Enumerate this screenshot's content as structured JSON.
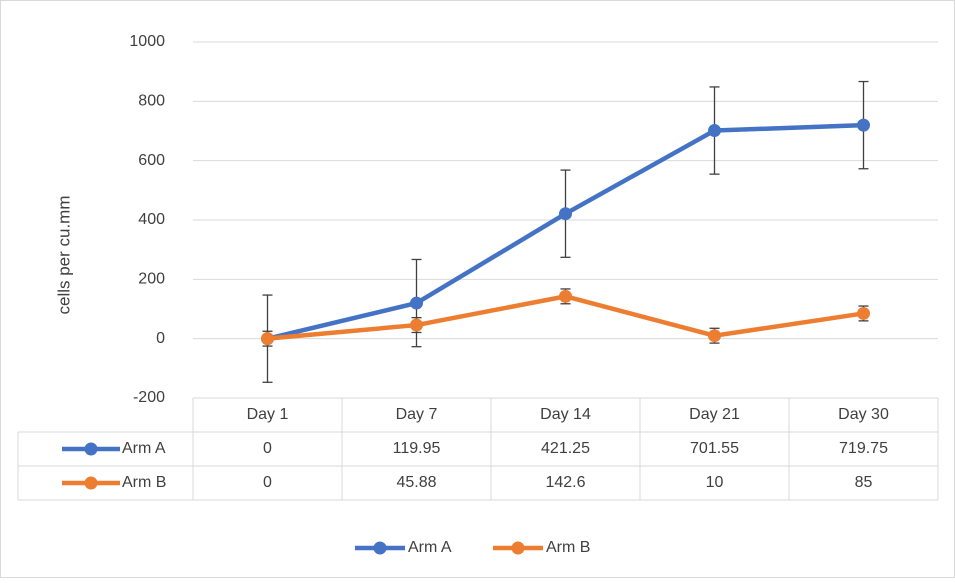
{
  "chart_data": {
    "type": "line",
    "y_label": "cells per cu.mm",
    "categories": [
      "Day 1",
      "Day 7",
      "Day 14",
      "Day 21",
      "Day 30"
    ],
    "series": [
      {
        "name": "Arm A",
        "color": "#4472c4",
        "values": [
          0,
          119.95,
          421.25,
          701.55,
          719.75
        ],
        "errors": [
          147,
          147,
          147,
          147,
          147
        ]
      },
      {
        "name": "Arm B",
        "color": "#ed7d31",
        "values": [
          0,
          45.88,
          142.6,
          10,
          85
        ],
        "errors": [
          25,
          25,
          25,
          25,
          25
        ]
      }
    ],
    "ylim": [
      -200,
      1000
    ],
    "yticks": [
      -200,
      0,
      200,
      400,
      600,
      800,
      1000
    ],
    "grid": true,
    "legend": "bottom",
    "data_table": true
  }
}
